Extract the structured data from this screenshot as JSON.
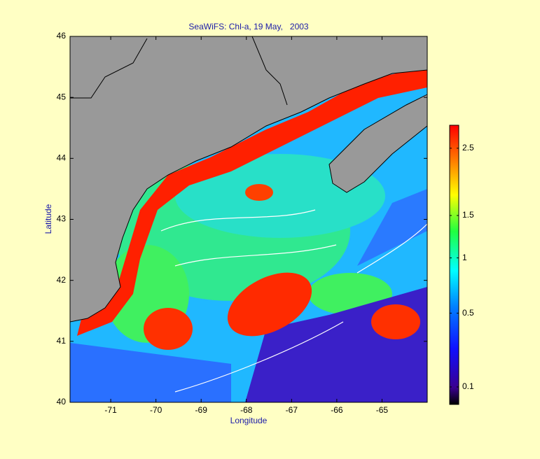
{
  "chart_data": {
    "type": "map",
    "title": "SeaWiFS: Chl-a, 19 May,   2003",
    "xlabel": "Longitude",
    "ylabel": "Latitude",
    "xlim": [
      -71.9,
      -64.0
    ],
    "ylim": [
      40,
      46
    ],
    "xticks": [
      -71,
      -70,
      -69,
      -68,
      -67,
      -66,
      -65
    ],
    "yticks": [
      40,
      41,
      42,
      43,
      44,
      45,
      46
    ],
    "colorbar": {
      "lim": [
        0.05,
        2.9
      ],
      "scale": "sqrt",
      "colormap": "jet",
      "ticks": [
        0.1,
        0.5,
        1,
        1.5,
        2.5
      ]
    }
  }
}
